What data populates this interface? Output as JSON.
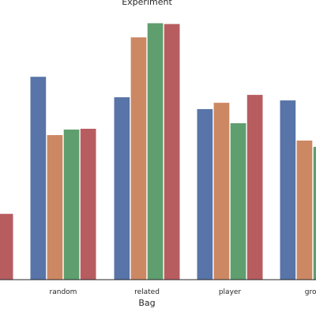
{
  "chart_data": {
    "type": "bar",
    "title": "Experiment",
    "xlabel": "Bag",
    "ylabel": "",
    "categories": [
      "",
      "random",
      "related",
      "player",
      "grou"
    ],
    "ylim": [
      0,
      330
    ],
    "grid": false,
    "series": [
      {
        "color": "#5874a8",
        "values": [
          null,
          258,
          232,
          217,
          228
        ]
      },
      {
        "color": "#cc8863",
        "values": [
          null,
          184,
          308,
          225,
          177
        ]
      },
      {
        "color": "#5f9e6e",
        "values": [
          null,
          191,
          326,
          199,
          169
        ]
      },
      {
        "color": "#b75d60",
        "values": [
          84,
          192,
          325,
          235,
          null
        ]
      }
    ]
  }
}
